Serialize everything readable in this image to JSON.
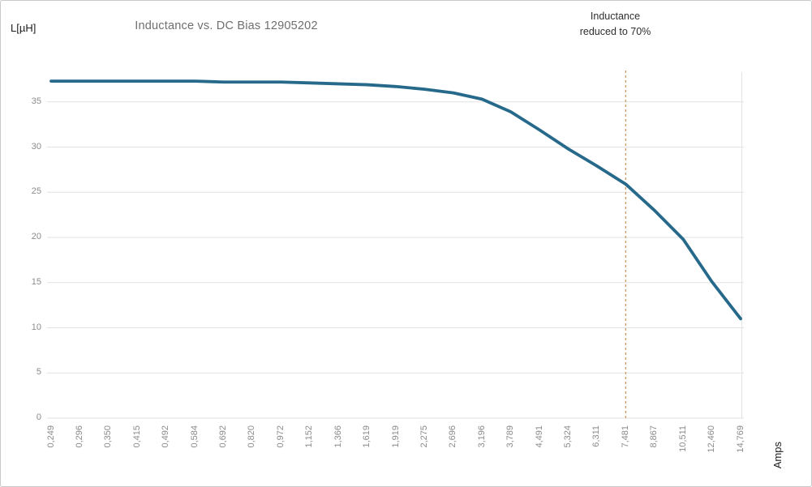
{
  "chart_data": {
    "type": "line",
    "title": "Inductance vs. DC Bias 12905202",
    "ylabel": "L[µH]",
    "xlabel": "Amps",
    "categories": [
      "0,249",
      "0,296",
      "0,350",
      "0,415",
      "0,492",
      "0,584",
      "0,692",
      "0,820",
      "0,972",
      "1,152",
      "1,366",
      "1,619",
      "1,919",
      "2,275",
      "2,696",
      "3,196",
      "3,789",
      "4,491",
      "5,324",
      "6,311",
      "7,481",
      "8,867",
      "10,511",
      "12,460",
      "14,769"
    ],
    "series": [
      {
        "name": "Inductance",
        "values": [
          37.3,
          37.3,
          37.3,
          37.3,
          37.3,
          37.3,
          37.2,
          37.2,
          37.2,
          37.1,
          37.0,
          36.9,
          36.7,
          36.4,
          36.0,
          35.3,
          33.9,
          31.9,
          29.8,
          27.9,
          25.9,
          23.0,
          19.8,
          15.1,
          11.0
        ]
      }
    ],
    "yticks": [
      0,
      5,
      10,
      15,
      20,
      25,
      30,
      35
    ],
    "ylim": [
      0,
      37.5
    ],
    "grid": "horizontal",
    "legend": "none",
    "annotation": {
      "line1": "Inductance",
      "line2": "reduced to 70%",
      "x_category": "7,481"
    },
    "colors": {
      "line": "#26698a",
      "threshold": "#c49455",
      "grid": "#e2e2e2",
      "tick_text": "#8b8b8b",
      "title_text": "#6f6f6f",
      "axis_unit_text": "#1c1c1c"
    }
  }
}
